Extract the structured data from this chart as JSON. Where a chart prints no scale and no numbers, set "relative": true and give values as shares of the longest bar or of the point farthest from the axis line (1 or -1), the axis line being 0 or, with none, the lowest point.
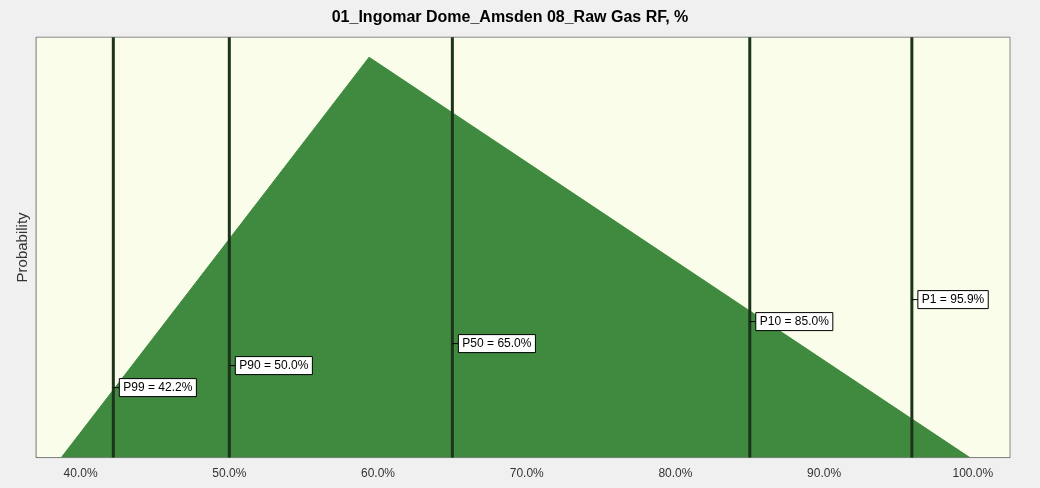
{
  "chart_data": {
    "type": "area",
    "title": "01_Ingomar Dome_Amsden 08_Raw Gas RF, %",
    "ylabel": "Probability",
    "relative": true,
    "x": [
      38.7,
      59.4,
      99.8
    ],
    "series": [
      {
        "color": "#3f8a3f",
        "values": [
          0,
          1,
          0
        ]
      }
    ],
    "xlim": [
      37,
      102.5
    ],
    "xticks": [
      {
        "value": 40,
        "label": "40.0%"
      },
      {
        "value": 50,
        "label": "50.0%"
      },
      {
        "value": 60,
        "label": "60.0%"
      },
      {
        "value": 70,
        "label": "70.0%"
      },
      {
        "value": 80,
        "label": "80.0%"
      },
      {
        "value": 90,
        "label": "90.0%"
      },
      {
        "value": 100,
        "label": "100.0%"
      }
    ],
    "ref_lines": [
      {
        "axis": "x",
        "value": 42.2,
        "label": "P99 = 42.2%",
        "color": "#1c331c"
      },
      {
        "axis": "x",
        "value": 50,
        "label": "P90 = 50.0%",
        "color": "#1c331c"
      },
      {
        "axis": "x",
        "value": 65,
        "label": "P50 = 65.0%",
        "color": "#1c331c"
      },
      {
        "axis": "x",
        "value": 85,
        "label": "P10 = 85.0%",
        "color": "#1c331c"
      },
      {
        "axis": "x",
        "value": 95.9,
        "label": "P1 = 95.9%",
        "color": "#1c331c"
      }
    ],
    "grid": false,
    "legend": false
  }
}
